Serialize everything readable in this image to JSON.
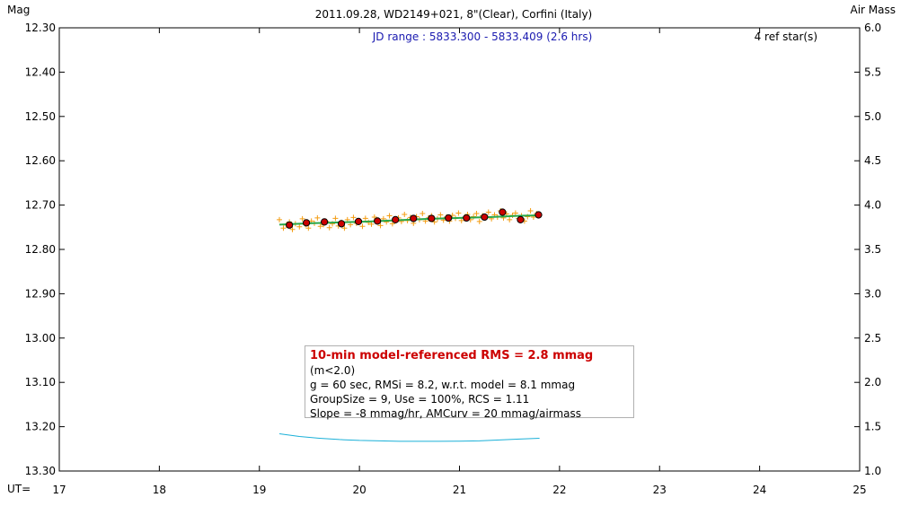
{
  "chart_data": {
    "type": "scatter",
    "title": "2011.09.28, WD2149+021, 8\"(Clear), Corfini (Italy)",
    "jd_range": "JD range : 5833.300 - 5833.409 (2.6 hrs)",
    "ref_stars": "4 ref star(s)",
    "ylabel_left": "Mag",
    "ylabel_right": "Air Mass",
    "xlabel": "UT=",
    "xlim": [
      17,
      25
    ],
    "ylim_left": [
      12.3,
      13.3
    ],
    "ylim_right": [
      1.0,
      6.0
    ],
    "left_inverted": true,
    "x_ticks": [
      "17",
      "18",
      "19",
      "20",
      "21",
      "22",
      "23",
      "24",
      "25"
    ],
    "y_left_ticks": [
      "12.30",
      "12.40",
      "12.50",
      "12.60",
      "12.70",
      "12.80",
      "12.90",
      "13.00",
      "13.10",
      "13.20",
      "13.30"
    ],
    "y_right_ticks": [
      "6.0",
      "5.5",
      "5.0",
      "4.5",
      "4.0",
      "3.5",
      "3.0",
      "2.5",
      "2.0",
      "1.5",
      "1.0"
    ],
    "colors": {
      "raw": "#f39c12",
      "group": "#cc0000",
      "model": "#2aa84a",
      "airmass": "#1ab0d8",
      "axis": "#000000"
    },
    "series": [
      {
        "kind": "raw",
        "x": [
          19.2,
          19.24,
          19.27,
          19.3,
          19.33,
          19.36,
          19.4,
          19.43,
          19.46,
          19.49,
          19.52,
          19.55,
          19.58,
          19.61,
          19.64,
          19.67,
          19.7,
          19.73,
          19.76,
          19.79,
          19.82,
          19.85,
          19.88,
          19.91,
          19.94,
          19.97,
          20.0,
          20.03,
          20.06,
          20.09,
          20.12,
          20.15,
          20.18,
          20.21,
          20.24,
          20.27,
          20.3,
          20.33,
          20.36,
          20.39,
          20.42,
          20.45,
          20.48,
          20.51,
          20.54,
          20.57,
          20.6,
          20.63,
          20.66,
          20.69,
          20.72,
          20.75,
          20.78,
          20.81,
          20.84,
          20.87,
          20.9,
          20.93,
          20.96,
          20.99,
          21.02,
          21.05,
          21.08,
          21.11,
          21.14,
          21.17,
          21.2,
          21.23,
          21.26,
          21.29,
          21.32,
          21.35,
          21.38,
          21.41,
          21.44,
          21.47,
          21.5,
          21.53,
          21.56,
          21.59,
          21.62,
          21.65,
          21.68,
          21.71,
          21.74,
          21.77,
          21.8
        ],
        "y": [
          12.733,
          12.752,
          12.745,
          12.738,
          12.755,
          12.742,
          12.749,
          12.731,
          12.744,
          12.752,
          12.736,
          12.741,
          12.729,
          12.748,
          12.744,
          12.737,
          12.751,
          12.742,
          12.73,
          12.747,
          12.739,
          12.752,
          12.733,
          12.744,
          12.728,
          12.741,
          12.736,
          12.748,
          12.73,
          12.739,
          12.743,
          12.727,
          12.735,
          12.746,
          12.731,
          12.738,
          12.724,
          12.742,
          12.733,
          12.729,
          12.737,
          12.721,
          12.735,
          12.728,
          12.741,
          12.726,
          12.733,
          12.719,
          12.736,
          12.729,
          12.724,
          12.738,
          12.731,
          12.722,
          12.734,
          12.727,
          12.736,
          12.723,
          12.73,
          12.718,
          12.735,
          12.728,
          12.721,
          12.733,
          12.726,
          12.719,
          12.737,
          12.724,
          12.729,
          12.716,
          12.731,
          12.722,
          12.727,
          12.713,
          12.729,
          12.72,
          12.733,
          12.723,
          12.718,
          12.73,
          12.724,
          12.736,
          12.726,
          12.713,
          12.727,
          12.719,
          12.723
        ]
      },
      {
        "kind": "group",
        "x": [
          19.3,
          19.47,
          19.65,
          19.82,
          19.99,
          20.18,
          20.36,
          20.54,
          20.72,
          20.89,
          21.07,
          21.25,
          21.43,
          21.61,
          21.79
        ],
        "y": [
          12.745,
          12.74,
          12.738,
          12.742,
          12.737,
          12.736,
          12.733,
          12.73,
          12.73,
          12.729,
          12.729,
          12.727,
          12.716,
          12.733,
          12.722
        ]
      },
      {
        "kind": "model",
        "x": [
          19.2,
          19.5,
          19.8,
          20.1,
          20.4,
          20.7,
          21.0,
          21.3,
          21.6,
          21.8
        ],
        "y": [
          12.744,
          12.741,
          12.739,
          12.737,
          12.734,
          12.731,
          12.729,
          12.727,
          12.724,
          12.723
        ]
      },
      {
        "kind": "airmass",
        "x": [
          19.2,
          19.4,
          19.6,
          19.8,
          20.0,
          20.2,
          20.4,
          20.6,
          20.8,
          21.0,
          21.2,
          21.4,
          21.6,
          21.8
        ],
        "y": [
          1.42,
          1.39,
          1.37,
          1.355,
          1.345,
          1.34,
          1.335,
          1.335,
          1.335,
          1.337,
          1.34,
          1.35,
          1.36,
          1.37
        ]
      }
    ]
  },
  "info": {
    "rms_line": "10-min model-referenced RMS = 2.8 mmag",
    "rms_note": "(m<2.0)",
    "line2": "g = 60 sec, RMSi = 8.2, w.r.t. model = 8.1 mmag",
    "line3": "GroupSize = 9, Use = 100%, RCS = 1.11",
    "line4": "Slope = -8 mmag/hr, AMCurv = 20 mmag/airmass"
  }
}
